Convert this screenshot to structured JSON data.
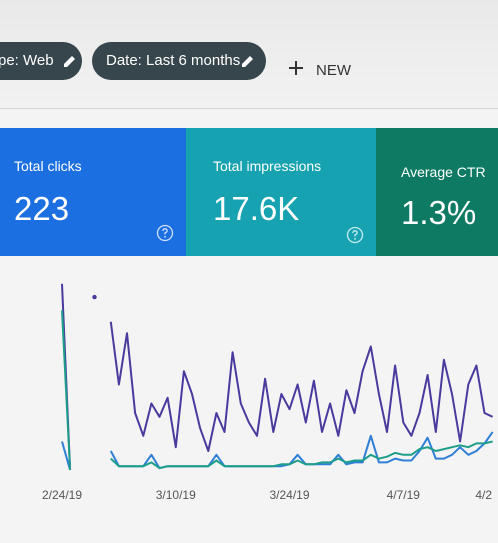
{
  "toolbar": {
    "chips": [
      "pe: Web",
      "Date: Last 6 months"
    ],
    "new_button": "NEW"
  },
  "metrics": [
    {
      "label": "Total clicks",
      "value": "223"
    },
    {
      "label": "Total impressions",
      "value": "17.6K"
    },
    {
      "label": "Average CTR",
      "value": "1.3%"
    }
  ],
  "chart_data": {
    "type": "line",
    "x": [
      0,
      1,
      2,
      3,
      4,
      5,
      6,
      7,
      8,
      9,
      10,
      11,
      12,
      13,
      14,
      15,
      16,
      17,
      18,
      19,
      20,
      21,
      22,
      23,
      24,
      25,
      26,
      27,
      28,
      29,
      30,
      31,
      32,
      33,
      34,
      35,
      36,
      37,
      38,
      39,
      40,
      41,
      42,
      43,
      44,
      45,
      46,
      47,
      48,
      49,
      50,
      51,
      52,
      53
    ],
    "xlim": [
      0,
      56
    ],
    "xticks": [
      {
        "value": 0,
        "label": "2/24/19"
      },
      {
        "value": 14,
        "label": "3/10/19"
      },
      {
        "value": 28,
        "label": "3/24/19"
      },
      {
        "value": 42,
        "label": "4/7/19"
      },
      {
        "value": 56,
        "label": "4/2"
      }
    ],
    "ylim": [
      0,
      100
    ],
    "series": [
      {
        "color": "#4a3a9e",
        "values": [
          98,
          0,
          null,
          null,
          91,
          null,
          78,
          45,
          72,
          30,
          18,
          35,
          28,
          38,
          12,
          52,
          40,
          22,
          10,
          30,
          20,
          62,
          35,
          25,
          18,
          48,
          20,
          40,
          32,
          45,
          25,
          47,
          20,
          35,
          18,
          42,
          30,
          52,
          65,
          40,
          20,
          55,
          25,
          18,
          30,
          50,
          20,
          58,
          40,
          15,
          45,
          55,
          30,
          28
        ]
      },
      {
        "color": "#2f7fd6",
        "values": [
          15,
          0,
          null,
          null,
          null,
          null,
          10,
          2,
          2,
          2,
          2,
          8,
          1,
          2,
          2,
          2,
          2,
          2,
          2,
          8,
          2,
          2,
          2,
          2,
          2,
          2,
          2,
          2,
          3,
          8,
          3,
          3,
          3,
          3,
          8,
          3,
          4,
          4,
          18,
          4,
          4,
          6,
          5,
          5,
          10,
          17,
          6,
          6,
          8,
          12,
          8,
          10,
          14,
          20
        ]
      },
      {
        "color": "#1e9e8a",
        "values": [
          84,
          0,
          null,
          null,
          null,
          null,
          6,
          2,
          2,
          2,
          2,
          4,
          1,
          2,
          2,
          2,
          2,
          2,
          2,
          5,
          2,
          2,
          2,
          2,
          2,
          2,
          2,
          3,
          3,
          5,
          3,
          3,
          4,
          4,
          6,
          4,
          5,
          5,
          8,
          6,
          7,
          9,
          8,
          8,
          11,
          12,
          10,
          11,
          12,
          13,
          12,
          14,
          14,
          15
        ]
      }
    ]
  }
}
